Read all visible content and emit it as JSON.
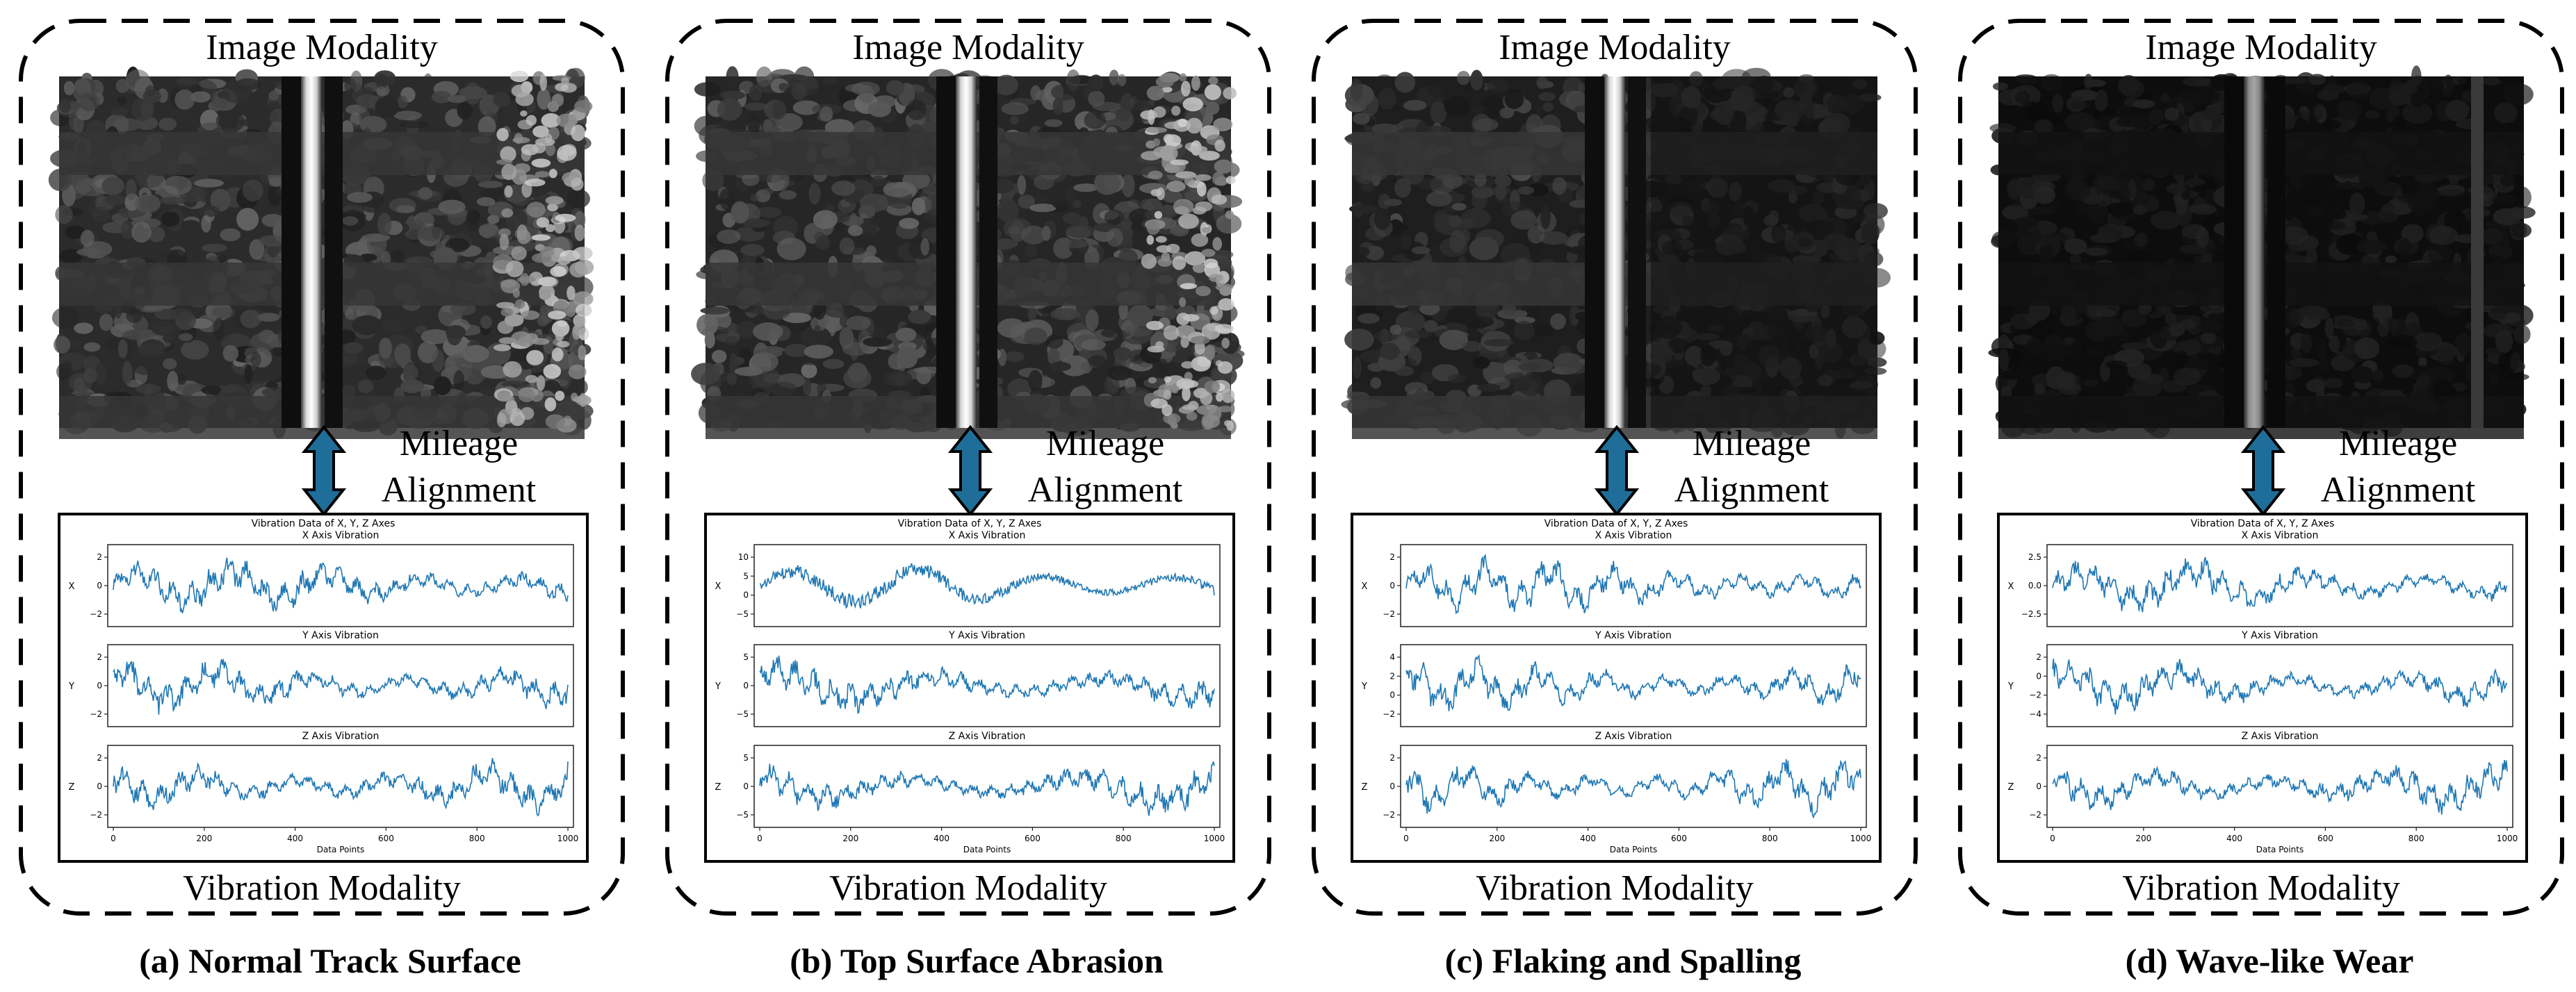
{
  "labels": {
    "image_modality": "Image Modality",
    "mileage_line1": "Mileage",
    "mileage_line2": "Alignment",
    "vibration_modality": "Vibration Modality",
    "plot_title": "Vibration Data of X, Y, Z Axes",
    "x_title": "X Axis Vibration",
    "y_title": "Y Axis Vibration",
    "z_title": "Z Axis Vibration",
    "x_ylabel": "X",
    "y_ylabel": "Y",
    "z_ylabel": "Z",
    "xlabel": "Data Points"
  },
  "colors": {
    "series": "#1f77b4",
    "arrow": "#1f6e99",
    "frame": "#000000"
  },
  "panels": [
    {
      "caption": "(a) Normal Track Surface",
      "image_style": "normal",
      "xticks": [
        "0",
        "200",
        "400",
        "600",
        "800",
        "1000"
      ],
      "x_yticks": [
        "2",
        "0",
        "−2"
      ],
      "y_yticks": [
        "2",
        "0",
        "−2"
      ],
      "z_yticks": [
        "2",
        "0",
        "−2"
      ]
    },
    {
      "caption": "(b) Top Surface Abrasion",
      "image_style": "abrasion",
      "xticks": [
        "0",
        "200",
        "400",
        "600",
        "800",
        "1000"
      ],
      "x_yticks": [
        "10",
        "5",
        "0",
        "−5"
      ],
      "y_yticks": [
        "5",
        "0",
        "−5"
      ],
      "z_yticks": [
        "5",
        "0",
        "−5"
      ]
    },
    {
      "caption": "(c) Flaking and Spalling",
      "image_style": "spalling",
      "xticks": [
        "0",
        "200",
        "400",
        "600",
        "800",
        "1000"
      ],
      "x_yticks": [
        "2",
        "0",
        "−2"
      ],
      "y_yticks": [
        "4",
        "2",
        "0",
        "−2"
      ],
      "z_yticks": [
        "2",
        "0",
        "−2"
      ]
    },
    {
      "caption": "(d) Wave-like Wear",
      "image_style": "wave",
      "xticks": [
        "0",
        "200",
        "400",
        "600",
        "800",
        "1000"
      ],
      "x_yticks": [
        "2.5",
        "0.0",
        "−2.5"
      ],
      "y_yticks": [
        "2",
        "0",
        "−2",
        "−4"
      ],
      "z_yticks": [
        "2",
        "0",
        "−2"
      ]
    }
  ]
}
